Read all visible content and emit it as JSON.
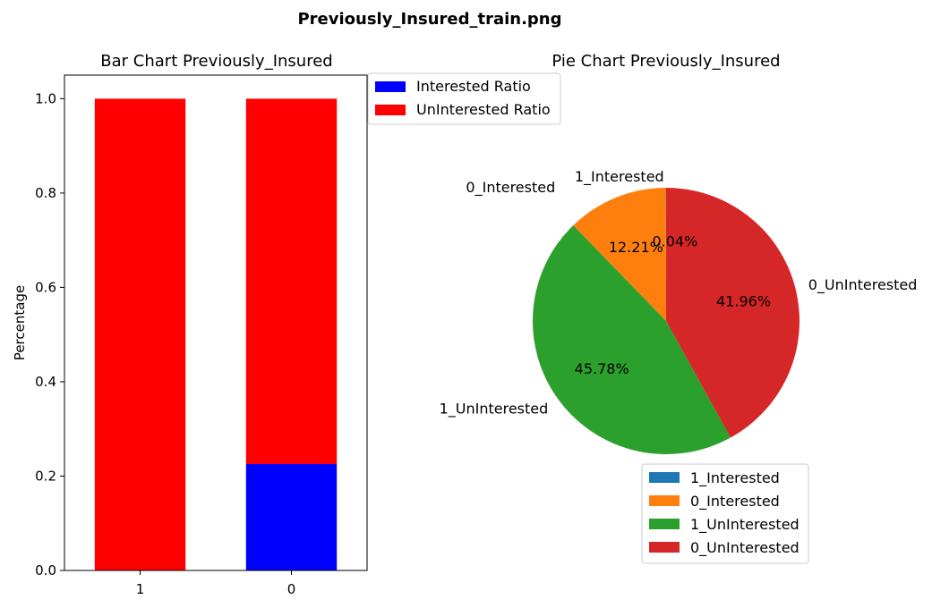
{
  "figure": {
    "suptitle": "Previously_Insured_train.png"
  },
  "chart_data": [
    {
      "type": "bar",
      "stacked": true,
      "title": "Bar Chart Previously_Insured",
      "xlabel": "",
      "ylabel": "Percentage",
      "categories": [
        "1",
        "0"
      ],
      "ylim": [
        0,
        1.05
      ],
      "yticks": [
        "0.0",
        "0.2",
        "0.4",
        "0.6",
        "0.8",
        "1.0"
      ],
      "series": [
        {
          "name": "Interested Ratio",
          "color": "#0000ff",
          "values": [
            0.0009,
            0.2255
          ]
        },
        {
          "name": "UnInterested Ratio",
          "color": "#ff0000",
          "values": [
            0.9991,
            0.7745
          ]
        }
      ],
      "legend_placement": "outside upper-right of the bar chart"
    },
    {
      "type": "pie",
      "title": "Pie Chart Previously_Insured",
      "slices": [
        {
          "label": "1_Interested",
          "value": 0.04,
          "pct_label": "0.04%",
          "color": "#1f77b4"
        },
        {
          "label": "0_Interested",
          "value": 12.21,
          "pct_label": "12.21%",
          "color": "#ff7f0e"
        },
        {
          "label": "1_UnInterested",
          "value": 45.78,
          "pct_label": "45.78%",
          "color": "#2ca02c"
        },
        {
          "label": "0_UnInterested",
          "value": 41.96,
          "pct_label": "41.96%",
          "color": "#d62728"
        }
      ],
      "legend_placement": "below the pie"
    }
  ]
}
